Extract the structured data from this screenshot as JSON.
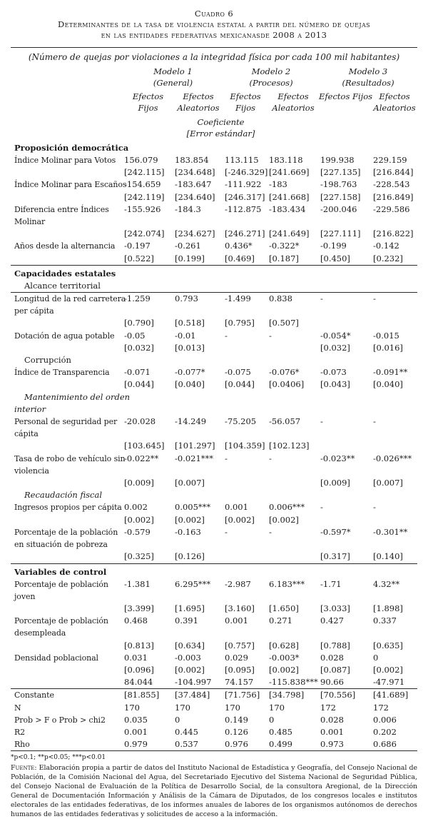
{
  "title": {
    "line1": "Cuadro 6",
    "line2": "Determinantes de la tasa de violencia estatal a partir del número de quejas",
    "line3": "en las entidades federativas mexicanasde 2008 a 2013"
  },
  "subtitle": "(Número de quejas por violaciones a la integridad física por cada 100 mil habitantes)",
  "header": {
    "models": [
      "Modelo 1\n(General)",
      "Modelo 2\n(Procesos)",
      "Modelo 3\n(Resultados)"
    ],
    "effects": [
      "Efectos\nFijos",
      "Efectos\nAleatorios",
      "Efectos\nFijos",
      "Efectos\nAleatorios",
      "Efectos Fijos",
      "Efectos\nAleatorios"
    ],
    "stat_note": "Coeficiente\n[Error estándar]"
  },
  "table": {
    "rows": [
      {
        "type": "section",
        "label": "Proposición democrática"
      },
      {
        "type": "var",
        "label": "Índice Molinar para Votos",
        "coefs": [
          "156.079",
          "183.854",
          "113.115",
          "183.118",
          "199.938",
          "229.159"
        ],
        "ses": [
          "[242.115]",
          "[234.648]",
          "[-246.329]",
          "[241.669]",
          "[227.135]",
          "[216.844]"
        ]
      },
      {
        "type": "var",
        "label": "Índice Molinar para Escaños",
        "coefs": [
          "-154.659",
          "-183.647",
          "-111.922",
          "-183",
          "-198.763",
          "-228.543"
        ],
        "ses": [
          "[242.119]",
          "[234.640]",
          "[246.317]",
          "[241.668]",
          "[227.158]",
          "[216.849]"
        ]
      },
      {
        "type": "var",
        "label": "Diferencia entre Índices\nMolinar",
        "coefs": [
          "-155.926",
          "-184.3",
          "-112.875",
          "-183.434",
          "-200.046",
          "-229.586"
        ],
        "ses": [
          "[242.074]",
          "[234.627]",
          "[246.271]",
          "[241.649]",
          "[227.111]",
          "[216.822]"
        ]
      },
      {
        "type": "var",
        "label": "Años desde la alternancia",
        "coefs": [
          "-0.197",
          "-0.261",
          "0.436*",
          "-0.322*",
          "-0.199",
          "-0.142"
        ],
        "ses": [
          "[0.522]",
          "[0.199]",
          "[0.469]",
          "[0.187]",
          "[0.450]",
          "[0.232]"
        ]
      },
      {
        "type": "section",
        "label": "Capacidades estatales",
        "border_top": "thick"
      },
      {
        "type": "subsection",
        "label": "Alcance territorial",
        "border_bottom": "thin"
      },
      {
        "type": "var",
        "label": "Longitud de la red carretera\nper cápita",
        "coefs": [
          "-1.259",
          "0.793",
          "-1.499",
          "0.838",
          "-",
          "-"
        ],
        "ses": [
          "[0.790]",
          "[0.518]",
          "[0.795]",
          "[0.507]",
          "",
          ""
        ]
      },
      {
        "type": "var",
        "label": "Dotación de agua potable",
        "coefs": [
          "-0.05",
          "-0.01",
          "-",
          "-",
          "-0.054*",
          "-0.015"
        ],
        "ses": [
          "[0.032]",
          "[0.013]",
          "",
          "",
          "[0.032]",
          "[0.016]"
        ]
      },
      {
        "type": "subsection",
        "label": "Corrupción"
      },
      {
        "type": "var",
        "label": "Índice de Transparencia",
        "coefs": [
          "-0.071",
          "-0.077*",
          "-0.075",
          "-0.076*",
          "-0.073",
          "-0.091**"
        ],
        "ses": [
          "[0.044]",
          "[0.040]",
          "[0.044]",
          "[0.0406]",
          "[0.043]",
          "[0.040]"
        ]
      },
      {
        "type": "subsection",
        "label": "Mantenimiento del orden\ninterior",
        "italic": true
      },
      {
        "type": "var",
        "label": "Personal de seguridad per\ncápita",
        "coefs": [
          "-20.028",
          "-14.249",
          "-75.205",
          "-56.057",
          "-",
          "-"
        ],
        "ses": [
          "[103.645]",
          "[101.297]",
          "[104.359]",
          "[102.123]",
          "",
          ""
        ]
      },
      {
        "type": "var",
        "label": "Tasa de robo de vehículo sin\nviolencia",
        "coefs": [
          "-0.022**",
          "-0.021***",
          "-",
          "-",
          "-0.023**",
          "-0.026***"
        ],
        "ses": [
          "[0.009]",
          "[0.007]",
          "",
          "",
          "[0.009]",
          "[0.007]"
        ]
      },
      {
        "type": "subsection",
        "label": "Recaudación fiscal",
        "italic": true
      },
      {
        "type": "var",
        "label": "Ingresos propios per cápita",
        "coefs": [
          "0.002",
          "0.005***",
          "0.001",
          "0.006***",
          "-",
          "-"
        ],
        "ses": [
          "[0.002]",
          "[0.002]",
          "[0.002]",
          "[0.002]",
          "",
          ""
        ]
      },
      {
        "type": "var",
        "label": "Porcentaje de la población\nen situación de pobreza",
        "coefs": [
          "-0.579",
          "-0.163",
          "-",
          "-",
          "-0.597*",
          "-0.301**"
        ],
        "ses": [
          "[0.325]",
          "[0.126]",
          "",
          "",
          "[0.317]",
          "[0.140]"
        ]
      },
      {
        "type": "section",
        "label": "Variables de control",
        "border_top": "thick"
      },
      {
        "type": "var",
        "label": "Porcentaje de población\njoven",
        "coefs": [
          "-1.381",
          "6.295***",
          "-2.987",
          "6.183***",
          "-1.71",
          "4.32**"
        ],
        "ses": [
          "[3.399]",
          "[1.695]",
          "[3.160]",
          "[1.650]",
          "[3.033]",
          "[1.898]"
        ]
      },
      {
        "type": "var",
        "label": "Porcentaje de población\ndesempleada",
        "coefs": [
          "0.468",
          "0.391",
          "0.001",
          "0.271",
          "0.427",
          "0.337"
        ],
        "ses": [
          "[0.813]",
          "[0.634]",
          "[0.757]",
          "[0.628]",
          "[0.788]",
          "[0.635]"
        ]
      },
      {
        "type": "var",
        "label": "Densidad poblacional",
        "coefs": [
          "0.031",
          "-0.003",
          "0.029",
          "-0.003*",
          "0.028",
          "0"
        ],
        "ses": [
          "[0.096]",
          "[0.002]",
          "[0.095]",
          "[0.002]",
          "[0.087]",
          "[0.002]"
        ]
      },
      {
        "type": "stat",
        "label": "",
        "values": [
          "84.044",
          "-104.997",
          "74.157",
          "-115.838***",
          "90.66",
          "-47.971"
        ]
      },
      {
        "type": "stat",
        "label": "Constante",
        "values": [
          "[81.855]",
          "[37.484]",
          "[71.756]",
          "[34.798]",
          "[70.556]",
          "[41.689]"
        ],
        "border_top": "thin"
      },
      {
        "type": "stat",
        "label": "N",
        "values": [
          "170",
          "170",
          "170",
          "170",
          "172",
          "172"
        ]
      },
      {
        "type": "stat",
        "label": "Prob > F o Prob > chi2",
        "values": [
          "0.035",
          "0",
          "0.149",
          "0",
          "0.028",
          "0.006"
        ]
      },
      {
        "type": "stat",
        "label": "R2",
        "values": [
          "0.001",
          "0.445",
          "0.126",
          "0.485",
          "0.001",
          "0.202"
        ]
      },
      {
        "type": "stat",
        "label": "Rho",
        "values": [
          "0.979",
          "0.537",
          "0.976",
          "0.499",
          "0.973",
          "0.686"
        ]
      }
    ]
  },
  "footer": {
    "significance": "*p<0.1; **p<0.05; ***p<0.01",
    "source_label": "Fuente:",
    "source_text": " Elaboración propia a partir de datos del Instituto Nacional de Estadística y Geografía, del Consejo Nacional de Población, de la Comisión Nacional del Agua, del Secretariado Ejecutivo del Sistema Nacional de Seguridad Pública, del Consejo Nacional de Evaluación de la Política de Desarrollo Social, de la consultora Aregional, de la Dirección General de Documentación Información y Análisis de la Cámara de Diputados, de los congresos locales e institutos electorales de las entidades federativas, de los informes anuales de labores de los organismos autónomos de derechos humanos de las entidades federativas y solicitudes de acceso a la información."
  }
}
